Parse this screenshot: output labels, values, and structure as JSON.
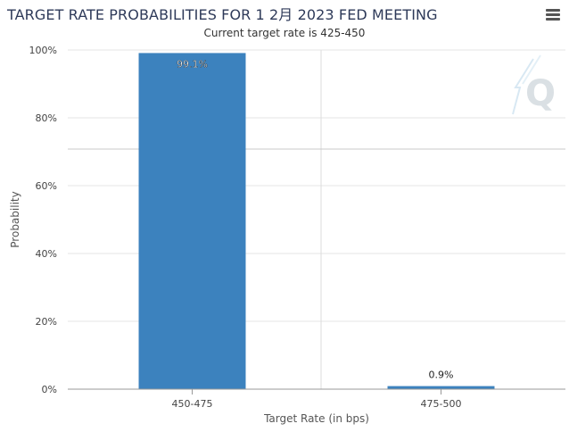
{
  "header": {
    "title": "TARGET RATE PROBABILITIES FOR 1 2月 2023 FED MEETING",
    "subtitle": "Current target rate is 425-450"
  },
  "watermark": "Q",
  "menu_icon": "hamburger-menu-icon",
  "colors": {
    "bar": "#3c82be",
    "grid": "#e6e6e6",
    "axis": "#999999"
  },
  "chart_data": {
    "type": "bar",
    "title": "TARGET RATE PROBABILITIES FOR 1 2月 2023 FED MEETING",
    "subtitle": "Current target rate is 425-450",
    "xlabel": "Target Rate (in bps)",
    "ylabel": "Probability",
    "categories": [
      "450-475",
      "475-500"
    ],
    "values": [
      99.1,
      0.9
    ],
    "data_labels": [
      "99.1%",
      "0.9%"
    ],
    "ylim": [
      0,
      100
    ],
    "yticks": [
      "0%",
      "20%",
      "40%",
      "60%",
      "80%",
      "100%"
    ],
    "ytick_values": [
      0,
      20,
      40,
      60,
      80,
      100
    ],
    "grid": true,
    "legend": "none"
  }
}
